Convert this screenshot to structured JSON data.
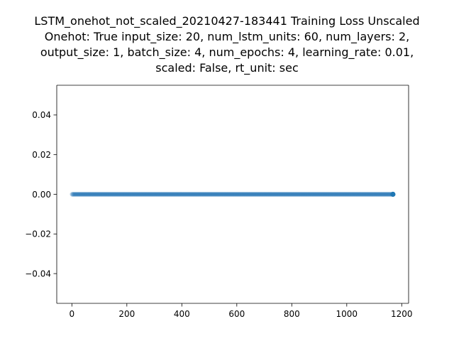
{
  "chart_data": {
    "type": "scatter",
    "title_lines": [
      "LSTM_onehot_not_scaled_20210427-183441 Training Loss Unscaled",
      "Onehot: True input_size: 20, num_lstm_units: 60, num_layers: 2,",
      "output_size: 1, batch_size: 4, num_epochs: 4, learning_rate: 0.01,",
      "scaled: False, rt_unit: sec"
    ],
    "xlabel": "",
    "ylabel": "",
    "xlim": [
      -55,
      1225
    ],
    "ylim": [
      -0.055,
      0.055
    ],
    "x_ticks": [
      0,
      200,
      400,
      600,
      800,
      1000,
      1200
    ],
    "x_tick_labels": [
      "0",
      "200",
      "400",
      "600",
      "800",
      "1000",
      "1200"
    ],
    "y_ticks": [
      -0.04,
      -0.02,
      0.0,
      0.02,
      0.04
    ],
    "y_tick_labels": [
      "−0.04",
      "−0.02",
      "0.00",
      "0.02",
      "0.04"
    ],
    "grid": false,
    "legend": "none",
    "series": [
      {
        "x_start": 0,
        "x_end": 1168,
        "x_step": 1,
        "y_constant": 0.0,
        "highlight_last_point": true
      }
    ],
    "colors": {
      "points": "#1f77b4",
      "points_alpha": 0.12,
      "last_point": "#1f77b4",
      "axes": "#000000",
      "background": "#ffffff"
    }
  }
}
